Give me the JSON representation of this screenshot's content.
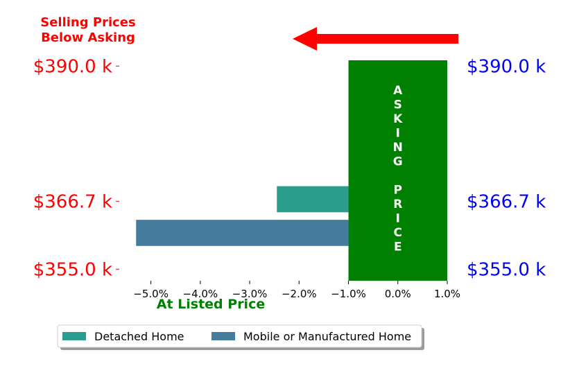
{
  "chart_data": {
    "type": "bar",
    "orientation": "horizontal",
    "xlim": [
      -5.5,
      1.0
    ],
    "xticks": [
      -5,
      -4,
      -3,
      -2,
      -1,
      0,
      1
    ],
    "xtick_labels": [
      "−5.0%",
      "−4.0%",
      "−3.0%",
      "−2.0%",
      "−1.0%",
      "0.0%",
      "1.0%"
    ],
    "xlabel": "At Listed Price",
    "ylim": [
      353,
      391
    ],
    "yticks": [
      390.0,
      366.7,
      355.0
    ],
    "ytick_labels_left": [
      "$390.0 k",
      "$366.7 k",
      "$355.0 k"
    ],
    "ytick_labels_right": [
      "$390.0 k",
      "$366.7 k",
      "$355.0 k"
    ],
    "annotation_top_left": [
      "Selling Prices",
      "Below Asking"
    ],
    "asking_price_band": {
      "x": [
        -1.0,
        1.0
      ],
      "y": [
        353,
        391
      ],
      "color": "#008000",
      "label_word1": "ASKING",
      "label_word2": "PRICE"
    },
    "series": [
      {
        "name": "Detached Home",
        "color": "#2a9d8f",
        "bar": {
          "x_from": -1.0,
          "x_to": -2.45,
          "y_from": 364.8,
          "y_to": 369.3
        }
      },
      {
        "name": "Mobile or Manufactured Home",
        "color": "#457b9d",
        "bar": {
          "x_from": -1.0,
          "x_to": -5.3,
          "y_from": 359.0,
          "y_to": 363.5
        }
      }
    ],
    "arrow": {
      "direction": "left",
      "color": "#ff0000"
    },
    "legend_position": "bottom",
    "grid": false,
    "colors": {
      "left_labels": "#ff0000",
      "right_labels": "#0000ff",
      "xlabel": "#008000",
      "top_annotation": "#ff0000"
    }
  }
}
